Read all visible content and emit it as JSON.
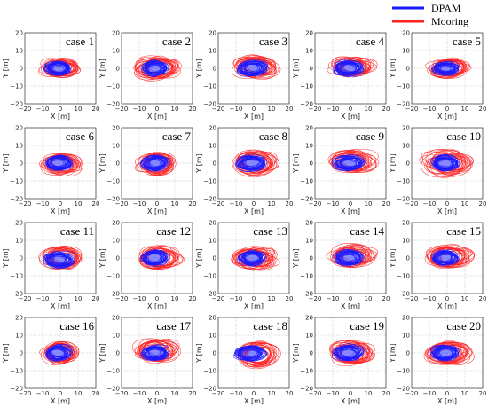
{
  "chart_data": {
    "type": "scatter",
    "title": "",
    "legend": {
      "placement": "top-right",
      "entries": [
        {
          "name": "DPAM",
          "color": "#1a1aff"
        },
        {
          "name": "Mooring",
          "color": "#ff2020"
        }
      ]
    },
    "xlabel": "X [m]",
    "ylabel": "Y [m]",
    "xlim": [
      -20,
      20
    ],
    "ylim": [
      -20,
      20
    ],
    "xticks": [
      "−20",
      "−10",
      "0",
      "10",
      "20"
    ],
    "yticks": [
      "20",
      "10",
      "0",
      "−10",
      "−20"
    ],
    "grid": true,
    "panels": [
      {
        "title": "case 1",
        "dpam": {
          "cx": -1,
          "cy": 0,
          "rx": 7,
          "ry": 3.5
        },
        "mooring": {
          "cx": 0,
          "cy": 0,
          "rx": 11,
          "ry": 5
        }
      },
      {
        "title": "case 2",
        "dpam": {
          "cx": -1,
          "cy": 0,
          "rx": 7,
          "ry": 4
        },
        "mooring": {
          "cx": 0,
          "cy": 0,
          "rx": 12,
          "ry": 6
        }
      },
      {
        "title": "case 3",
        "dpam": {
          "cx": -1,
          "cy": 0,
          "rx": 8,
          "ry": 4
        },
        "mooring": {
          "cx": 1,
          "cy": 1,
          "rx": 12,
          "ry": 6
        }
      },
      {
        "title": "case 4",
        "dpam": {
          "cx": -1,
          "cy": 0,
          "rx": 8,
          "ry": 4
        },
        "mooring": {
          "cx": 1,
          "cy": 1,
          "rx": 12,
          "ry": 5
        }
      },
      {
        "title": "case 5",
        "dpam": {
          "cx": -1,
          "cy": 0,
          "rx": 7,
          "ry": 3.5
        },
        "mooring": {
          "cx": 1,
          "cy": 0,
          "rx": 11,
          "ry": 5
        }
      },
      {
        "title": "case 6",
        "dpam": {
          "cx": -1,
          "cy": 0,
          "rx": 7,
          "ry": 4
        },
        "mooring": {
          "cx": 0,
          "cy": 0,
          "rx": 11,
          "ry": 6
        }
      },
      {
        "title": "case 7",
        "dpam": {
          "cx": -1,
          "cy": 0,
          "rx": 7,
          "ry": 4
        },
        "mooring": {
          "cx": 0,
          "cy": 0,
          "rx": 11,
          "ry": 6
        }
      },
      {
        "title": "case 8",
        "dpam": {
          "cx": -1,
          "cy": 0,
          "rx": 8,
          "ry": 4
        },
        "mooring": {
          "cx": 1,
          "cy": 0,
          "rx": 12,
          "ry": 7
        }
      },
      {
        "title": "case 9",
        "dpam": {
          "cx": -1,
          "cy": 0,
          "rx": 8,
          "ry": 4
        },
        "mooring": {
          "cx": 1,
          "cy": 1,
          "rx": 13,
          "ry": 6
        }
      },
      {
        "title": "case 10",
        "dpam": {
          "cx": -1,
          "cy": 0,
          "rx": 7,
          "ry": 4
        },
        "mooring": {
          "cx": 0,
          "cy": 0,
          "rx": 13,
          "ry": 7
        }
      },
      {
        "title": "case 11",
        "dpam": {
          "cx": -1,
          "cy": -1,
          "rx": 8,
          "ry": 4
        },
        "mooring": {
          "cx": 1,
          "cy": 0,
          "rx": 11,
          "ry": 6
        }
      },
      {
        "title": "case 12",
        "dpam": {
          "cx": -1,
          "cy": 0,
          "rx": 7,
          "ry": 4
        },
        "mooring": {
          "cx": 1,
          "cy": 0,
          "rx": 12,
          "ry": 6
        }
      },
      {
        "title": "case 13",
        "dpam": {
          "cx": -1,
          "cy": 0,
          "rx": 7,
          "ry": 4
        },
        "mooring": {
          "cx": 1,
          "cy": 0,
          "rx": 12,
          "ry": 6
        }
      },
      {
        "title": "case 14",
        "dpam": {
          "cx": -1,
          "cy": 0,
          "rx": 8,
          "ry": 4
        },
        "mooring": {
          "cx": 1,
          "cy": 1,
          "rx": 12,
          "ry": 6
        }
      },
      {
        "title": "case 15",
        "dpam": {
          "cx": -1,
          "cy": 0,
          "rx": 7,
          "ry": 4
        },
        "mooring": {
          "cx": 1,
          "cy": 1,
          "rx": 12,
          "ry": 6
        }
      },
      {
        "title": "case 16",
        "dpam": {
          "cx": -1,
          "cy": 0,
          "rx": 7,
          "ry": 4
        },
        "mooring": {
          "cx": 0,
          "cy": 0,
          "rx": 11,
          "ry": 6
        }
      },
      {
        "title": "case 17",
        "dpam": {
          "cx": -1,
          "cy": 0,
          "rx": 7,
          "ry": 4
        },
        "mooring": {
          "cx": 0,
          "cy": 1,
          "rx": 12,
          "ry": 6
        }
      },
      {
        "title": "case 18",
        "dpam": {
          "cx": -2,
          "cy": 0,
          "rx": 8,
          "ry": 4
        },
        "mooring": {
          "cx": 2,
          "cy": -1,
          "rx": 12,
          "ry": 7
        }
      },
      {
        "title": "case 19",
        "dpam": {
          "cx": -1,
          "cy": 0,
          "rx": 8,
          "ry": 4
        },
        "mooring": {
          "cx": 1,
          "cy": 0,
          "rx": 12,
          "ry": 6
        }
      },
      {
        "title": "case 20",
        "dpam": {
          "cx": -1,
          "cy": 0,
          "rx": 7,
          "ry": 4
        },
        "mooring": {
          "cx": 1,
          "cy": 0,
          "rx": 12,
          "ry": 6
        }
      }
    ]
  }
}
